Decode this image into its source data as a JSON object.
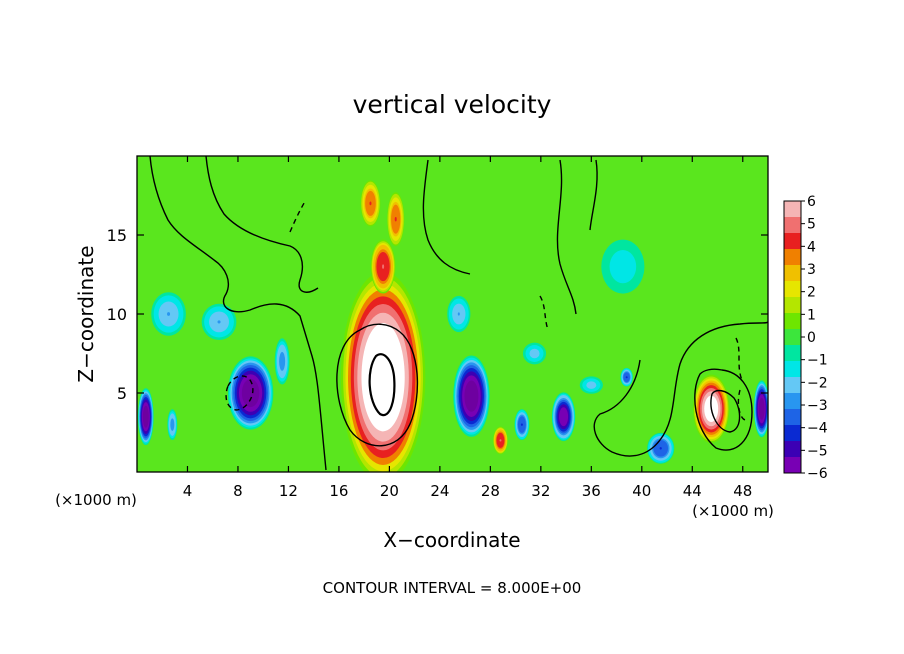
{
  "chart_data": {
    "type": "heatmap",
    "title": "vertical velocity",
    "xlabel": "X−coordinate",
    "ylabel": "Z−coordinate",
    "x_unit_left": "(×1000 m)",
    "x_unit_right": "(×1000 m)",
    "xlim": [
      0,
      50
    ],
    "ylim": [
      0,
      20
    ],
    "x_ticks": [
      {
        "value": 4,
        "label": "4"
      },
      {
        "value": 8,
        "label": "8"
      },
      {
        "value": 12,
        "label": "12"
      },
      {
        "value": 16,
        "label": "16"
      },
      {
        "value": 20,
        "label": "20"
      },
      {
        "value": 24,
        "label": "24"
      },
      {
        "value": 28,
        "label": "28"
      },
      {
        "value": 32,
        "label": "32"
      },
      {
        "value": 36,
        "label": "36"
      },
      {
        "value": 40,
        "label": "40"
      },
      {
        "value": 44,
        "label": "44"
      },
      {
        "value": 48,
        "label": "48"
      }
    ],
    "y_ticks": [
      {
        "value": 5,
        "label": "5"
      },
      {
        "value": 10,
        "label": "10"
      },
      {
        "value": 15,
        "label": "15"
      }
    ],
    "colorbar": {
      "min": -6,
      "max": 6,
      "labels": [
        "6",
        "5",
        "4",
        "3",
        "2",
        "1",
        "0",
        "−1",
        "−2",
        "−3",
        "−4",
        "−5",
        "−6"
      ],
      "colors": [
        "#f5b5b5",
        "#f07070",
        "#e82020",
        "#f08000",
        "#f0c000",
        "#e6e600",
        "#b4e600",
        "#6ee600",
        "#3ce63c",
        "#00e6a0",
        "#00e6e6",
        "#64c8f5",
        "#2896f0",
        "#1e64e6",
        "#0a2ad2",
        "#3c00b4",
        "#7800b4"
      ]
    },
    "contour_interval_text": "CONTOUR INTERVAL =  8.000E+00",
    "features": [
      {
        "x": 19.5,
        "z": 6,
        "w": 6.5,
        "h": 13,
        "peak": 8
      },
      {
        "x": 18.5,
        "z": 17,
        "w": 1.6,
        "h": 3,
        "peak": 4
      },
      {
        "x": 20.5,
        "z": 16,
        "w": 1.4,
        "h": 3.5,
        "peak": 4
      },
      {
        "x": 19.5,
        "z": 13,
        "w": 2,
        "h": 3.5,
        "peak": 5
      },
      {
        "x": 28.8,
        "z": 2,
        "w": 1.2,
        "h": 1.8,
        "peak": 5
      },
      {
        "x": 45.5,
        "z": 4,
        "w": 2.8,
        "h": 4.2,
        "peak": 7
      },
      {
        "x": 9,
        "z": 5,
        "w": 3.5,
        "h": 4.5,
        "peak": -7
      },
      {
        "x": 6.5,
        "z": 9.5,
        "w": 3,
        "h": 2.5,
        "peak": -2.5
      },
      {
        "x": 11.5,
        "z": 7,
        "w": 1.2,
        "h": 3,
        "peak": -3
      },
      {
        "x": 26.5,
        "z": 4.8,
        "w": 2.8,
        "h": 5,
        "peak": -7
      },
      {
        "x": 25.5,
        "z": 10,
        "w": 2,
        "h": 2.5,
        "peak": -2.5
      },
      {
        "x": 33.8,
        "z": 3.5,
        "w": 1.8,
        "h": 3,
        "peak": -6
      },
      {
        "x": 30.5,
        "z": 3,
        "w": 1.2,
        "h": 2,
        "peak": -4
      },
      {
        "x": 31.5,
        "z": 7.5,
        "w": 2,
        "h": 1.5,
        "peak": -2
      },
      {
        "x": 38.8,
        "z": 6,
        "w": 1,
        "h": 1.2,
        "peak": -4
      },
      {
        "x": 38.5,
        "z": 13,
        "w": 4,
        "h": 4,
        "peak": -1.5
      },
      {
        "x": 41.5,
        "z": 1.5,
        "w": 2.2,
        "h": 2,
        "peak": -4
      },
      {
        "x": 49.5,
        "z": 4,
        "w": 1.2,
        "h": 3.5,
        "peak": -7
      },
      {
        "x": 0.7,
        "z": 3.5,
        "w": 1.2,
        "h": 3.5,
        "peak": -7
      },
      {
        "x": 2.8,
        "z": 3,
        "w": 0.8,
        "h": 2,
        "peak": -3
      },
      {
        "x": 2.5,
        "z": 10,
        "w": 3,
        "h": 3,
        "peak": -2.5
      },
      {
        "x": 36,
        "z": 5.5,
        "w": 2,
        "h": 1.2,
        "peak": -2
      }
    ]
  }
}
